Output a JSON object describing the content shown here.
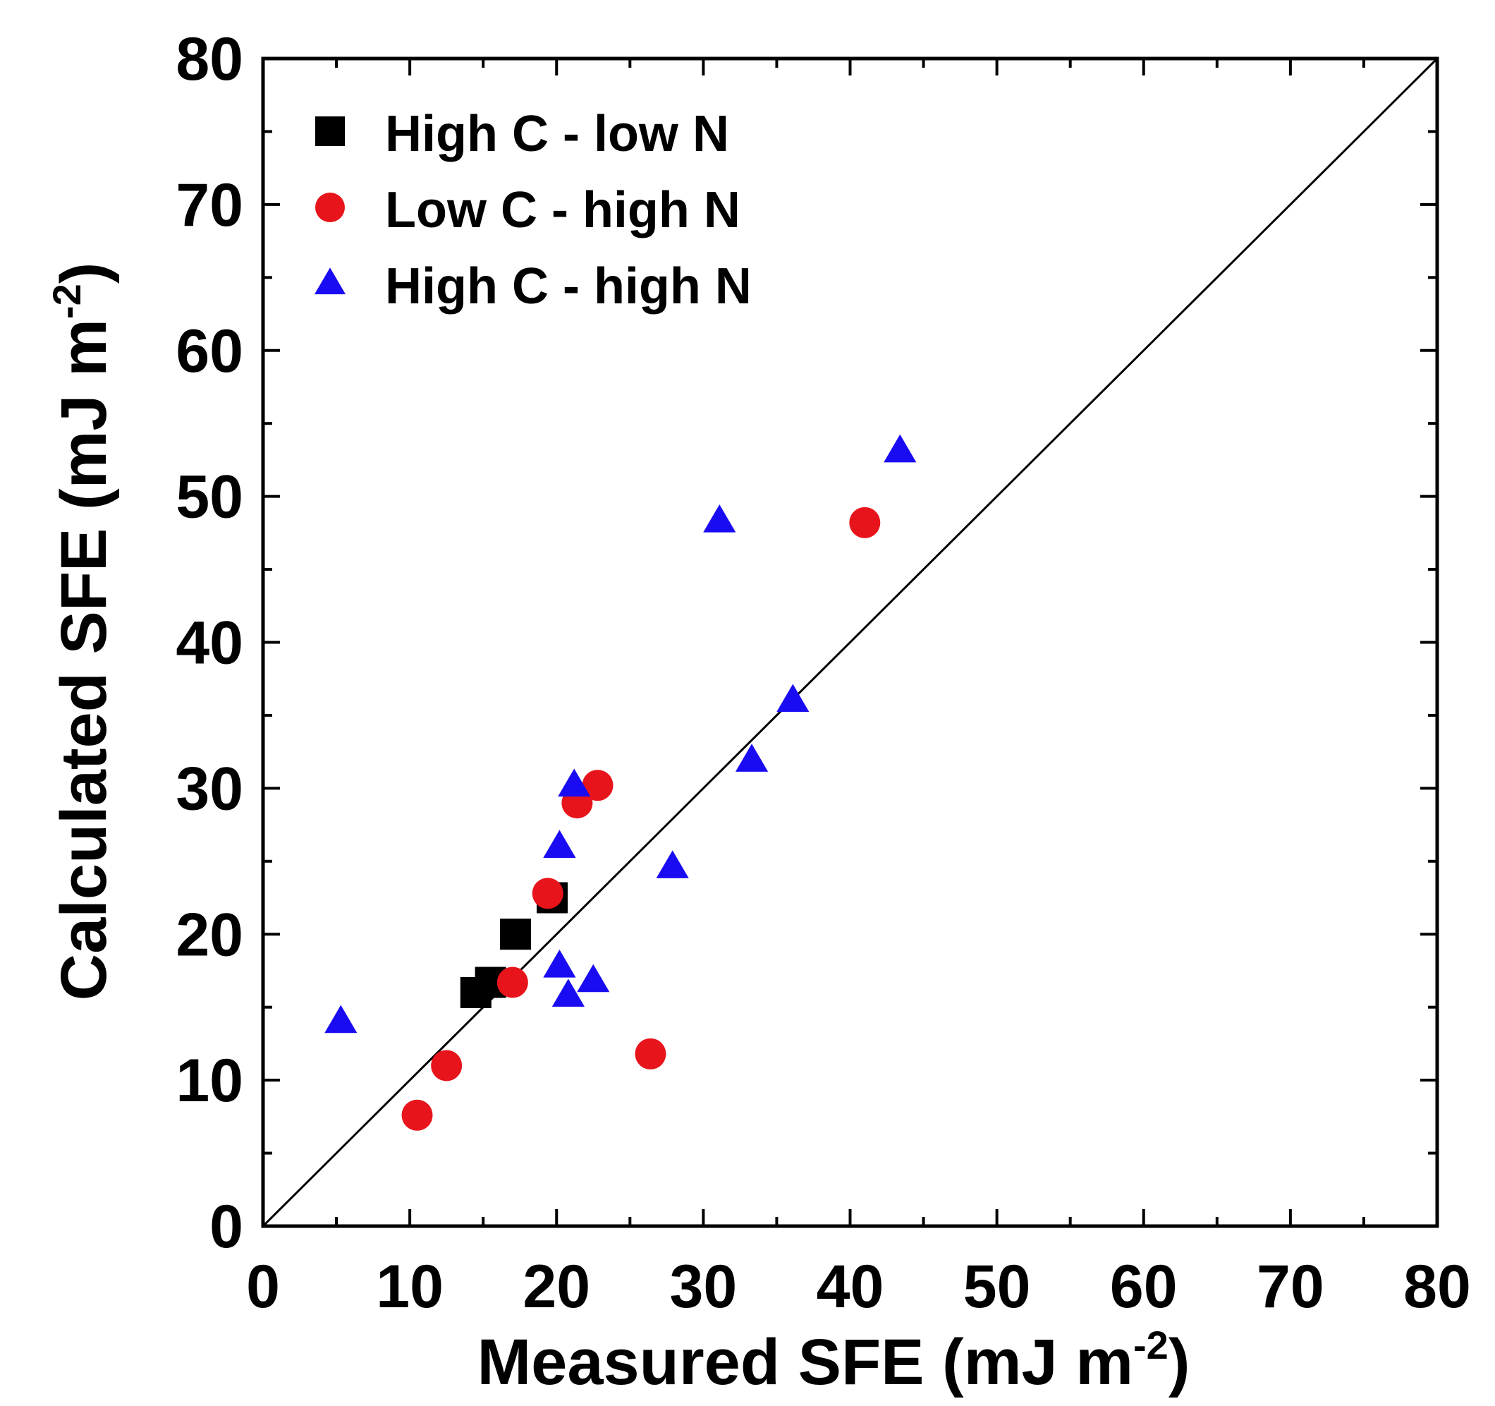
{
  "chart_data": {
    "type": "scatter",
    "xlabel": "Measured SFE (mJ m",
    "xlabel_sup": "-2",
    "xlabel_end": ")",
    "ylabel": "Calculated SFE (mJ m",
    "ylabel_sup": "-2",
    "ylabel_end": ")",
    "xlim": [
      0,
      80
    ],
    "ylim": [
      0,
      80
    ],
    "xticks": [
      "0",
      "10",
      "20",
      "30",
      "40",
      "50",
      "60",
      "70",
      "80"
    ],
    "yticks": [
      "0",
      "10",
      "20",
      "30",
      "40",
      "50",
      "60",
      "70",
      "80"
    ],
    "reference_line": {
      "label": "y = x",
      "from": [
        0,
        0
      ],
      "to": [
        80,
        80
      ]
    },
    "legend_position": "top-left",
    "series": [
      {
        "name": "High C - low N",
        "marker": "square",
        "color": "#000000",
        "points": [
          [
            14.5,
            16.0
          ],
          [
            15.5,
            16.7
          ],
          [
            17.2,
            20.0
          ],
          [
            19.7,
            22.5
          ]
        ]
      },
      {
        "name": "Low C - high N",
        "marker": "circle",
        "color": "#e8141b",
        "points": [
          [
            10.5,
            7.6
          ],
          [
            12.5,
            11.0
          ],
          [
            17.0,
            16.7
          ],
          [
            19.4,
            22.8
          ],
          [
            21.4,
            29.0
          ],
          [
            22.8,
            30.2
          ],
          [
            26.4,
            11.8
          ],
          [
            41.0,
            48.2
          ]
        ]
      },
      {
        "name": "High C - high N",
        "marker": "triangle",
        "color": "#1a0cf2",
        "points": [
          [
            5.3,
            14.0
          ],
          [
            20.2,
            17.8
          ],
          [
            20.8,
            15.8
          ],
          [
            22.5,
            16.8
          ],
          [
            20.2,
            26.0
          ],
          [
            21.2,
            30.2
          ],
          [
            27.9,
            24.6
          ],
          [
            31.1,
            48.3
          ],
          [
            33.3,
            31.9
          ],
          [
            36.1,
            36.0
          ],
          [
            43.4,
            53.1
          ]
        ]
      }
    ]
  }
}
